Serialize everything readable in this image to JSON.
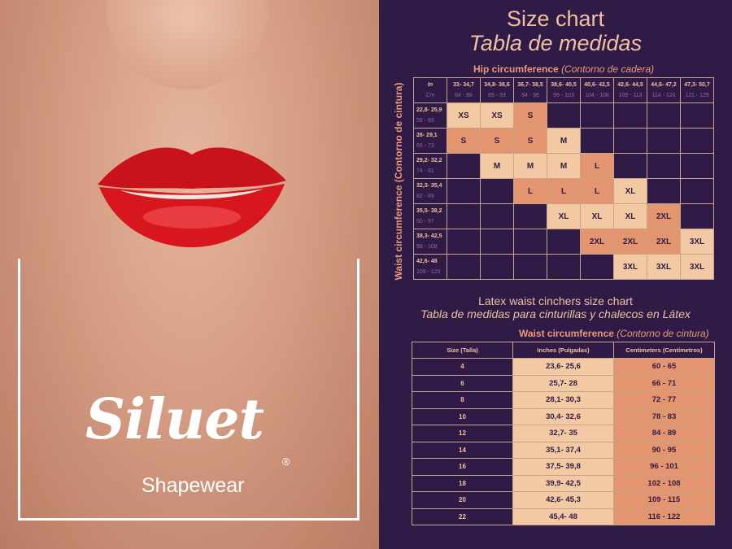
{
  "brand": {
    "name": "Siluet",
    "registered": "®",
    "tagline": "Shapewear"
  },
  "colors": {
    "background": "#2f1b46",
    "light_cell": "#f3c9a3",
    "dark_cell": "#e3956f",
    "title": "#f0c0a0"
  },
  "size_chart": {
    "title_en": "Size chart",
    "title_es": "Tabla de medidas",
    "hip_label": "Hip circumference",
    "hip_label_es": "(Contorno de cadera)",
    "waist_label": "Waist circumference (Contorno de cintura)",
    "corner": {
      "in": "In",
      "cm": "Cm"
    },
    "hip_cols": [
      {
        "in": "33-  34,7",
        "cm": "84 - 88"
      },
      {
        "in": "34,8-  36,6",
        "cm": "89 - 93"
      },
      {
        "in": "36,7-  38,5",
        "cm": "94 - 98"
      },
      {
        "in": "38,6-  40,5",
        "cm": "99 - 103"
      },
      {
        "in": "40,6-  42,5",
        "cm": "104 - 108"
      },
      {
        "in": "42,6-  44,5",
        "cm": "109 - 113"
      },
      {
        "in": "44,6-  47,2",
        "cm": "114 - 120"
      },
      {
        "in": "47,3-  50,7",
        "cm": "121 - 129"
      }
    ],
    "waist_rows": [
      {
        "in": "22,8-  25,9",
        "cm": "58 - 65",
        "cells": [
          "XS",
          "XS",
          "S",
          "",
          "",
          "",
          "",
          ""
        ]
      },
      {
        "in": "26-  29,1",
        "cm": "66 - 73",
        "cells": [
          "S",
          "S",
          "S",
          "M",
          "",
          "",
          "",
          ""
        ]
      },
      {
        "in": "29,2-  32,2",
        "cm": "74 - 81",
        "cells": [
          "",
          "M",
          "M",
          "M",
          "L",
          "",
          "",
          ""
        ]
      },
      {
        "in": "32,3-  35,4",
        "cm": "82 - 89",
        "cells": [
          "",
          "",
          "L",
          "L",
          "L",
          "XL",
          "",
          ""
        ]
      },
      {
        "in": "35,5-  38,2",
        "cm": "90 - 97",
        "cells": [
          "",
          "",
          "",
          "XL",
          "XL",
          "XL",
          "2XL",
          ""
        ]
      },
      {
        "in": "38,3-  42,5",
        "cm": "98 - 108",
        "cells": [
          "",
          "",
          "",
          "",
          "2XL",
          "2XL",
          "2XL",
          "3XL"
        ]
      },
      {
        "in": "42,6-  48",
        "cm": "109 - 120",
        "cells": [
          "",
          "",
          "",
          "",
          "",
          "3XL",
          "3XL",
          "3XL"
        ]
      }
    ]
  },
  "latex_chart": {
    "title_en": "Latex waist cinchers size chart",
    "title_es": "Tabla de medidas para cinturillas y chalecos en Látex",
    "waist_label": "Waist circumference",
    "waist_label_es": "(Contorno de cintura)",
    "headers": [
      "Size (Talla)",
      "Inches (Pulgadas)",
      "Centimeters (Centímetros)"
    ],
    "rows": [
      [
        "4",
        "23,6- 25,6",
        "60 - 65"
      ],
      [
        "6",
        "25,7- 28",
        "66 - 71"
      ],
      [
        "8",
        "28,1- 30,3",
        "72 - 77"
      ],
      [
        "10",
        "30,4- 32,6",
        "78 - 83"
      ],
      [
        "12",
        "32,7- 35",
        "84 - 89"
      ],
      [
        "14",
        "35,1- 37,4",
        "90 - 95"
      ],
      [
        "16",
        "37,5- 39,8",
        "96 - 101"
      ],
      [
        "18",
        "39,9- 42,5",
        "102 - 108"
      ],
      [
        "20",
        "42,6- 45,3",
        "109 - 115"
      ],
      [
        "22",
        "45,4- 48",
        "116 - 122"
      ]
    ]
  }
}
